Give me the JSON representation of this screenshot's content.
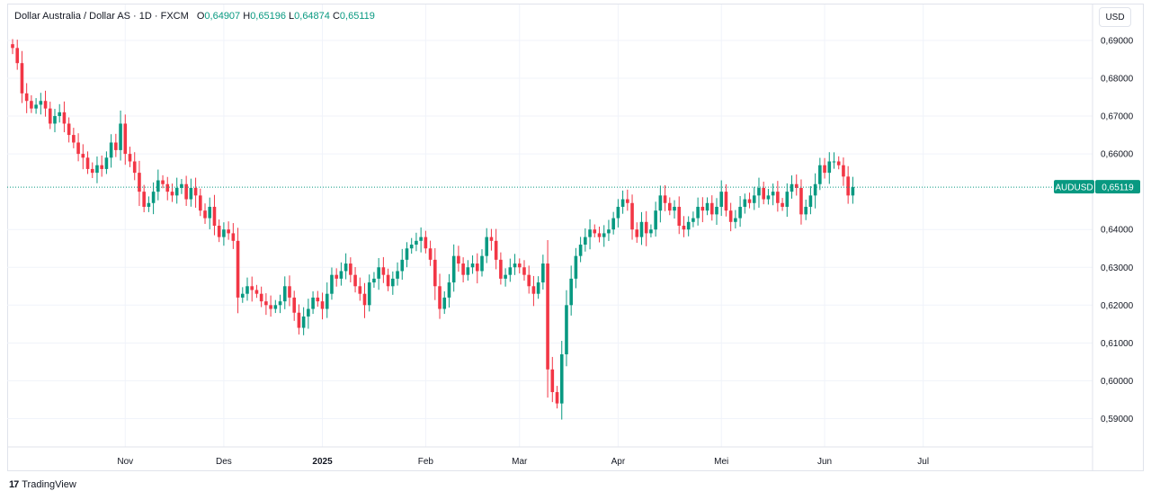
{
  "header": {
    "symbol_title": "Dollar Australia / Dollar AS · 1D · FXCM",
    "open_key": "O",
    "open_val": "0,64907",
    "high_key": "H",
    "high_val": "0,65196",
    "low_key": "L",
    "low_val": "0,64874",
    "close_key": "C",
    "close_val": "0,65119"
  },
  "currency_button": "USD",
  "footer": {
    "logo_glyph": "17",
    "brand": "TradingView"
  },
  "colors": {
    "up": "#089981",
    "down": "#f23645",
    "grid": "#f0f3fa",
    "price_line": "#089981"
  },
  "chart_data": {
    "type": "candlestick",
    "instrument": "AUDUSD",
    "last_price_label": "AUDUSD",
    "last_price": 0.65119,
    "last_price_text": "0,65119",
    "ylim": [
      0.5825,
      0.6995
    ],
    "y_ticks": [
      0.69,
      0.68,
      0.67,
      0.66,
      0.64,
      0.63,
      0.62,
      0.61,
      0.6,
      0.59
    ],
    "y_tick_labels": [
      "0,69000",
      "0,68000",
      "0,67000",
      "0,66000",
      "0,64000",
      "0,63000",
      "0,62000",
      "0,61000",
      "0,60000",
      "0,59000"
    ],
    "x_labels": [
      {
        "label": "Nov",
        "index": 24,
        "bold": false
      },
      {
        "label": "Des",
        "index": 45,
        "bold": false
      },
      {
        "label": "2025",
        "index": 66,
        "bold": true
      },
      {
        "label": "Feb",
        "index": 88,
        "bold": false
      },
      {
        "label": "Mar",
        "index": 108,
        "bold": false
      },
      {
        "label": "Apr",
        "index": 129,
        "bold": false
      },
      {
        "label": "Mei",
        "index": 151,
        "bold": false
      },
      {
        "label": "Jun",
        "index": 173,
        "bold": false
      },
      {
        "label": "Jul",
        "index": 194,
        "bold": false
      }
    ],
    "closes": [
      0.688,
      0.684,
      0.676,
      0.674,
      0.672,
      0.673,
      0.674,
      0.672,
      0.668,
      0.67,
      0.671,
      0.668,
      0.665,
      0.663,
      0.66,
      0.659,
      0.656,
      0.655,
      0.657,
      0.656,
      0.659,
      0.663,
      0.661,
      0.668,
      0.66,
      0.658,
      0.655,
      0.65,
      0.646,
      0.647,
      0.65,
      0.653,
      0.652,
      0.65,
      0.649,
      0.651,
      0.652,
      0.648,
      0.651,
      0.649,
      0.645,
      0.643,
      0.646,
      0.641,
      0.638,
      0.64,
      0.639,
      0.637,
      0.622,
      0.623,
      0.625,
      0.624,
      0.623,
      0.621,
      0.62,
      0.619,
      0.62,
      0.621,
      0.625,
      0.622,
      0.618,
      0.614,
      0.617,
      0.619,
      0.622,
      0.621,
      0.619,
      0.623,
      0.628,
      0.627,
      0.629,
      0.631,
      0.628,
      0.625,
      0.623,
      0.62,
      0.626,
      0.627,
      0.63,
      0.628,
      0.625,
      0.627,
      0.629,
      0.632,
      0.635,
      0.636,
      0.637,
      0.638,
      0.635,
      0.632,
      0.625,
      0.619,
      0.622,
      0.626,
      0.633,
      0.631,
      0.628,
      0.63,
      0.631,
      0.629,
      0.633,
      0.638,
      0.637,
      0.632,
      0.627,
      0.628,
      0.63,
      0.631,
      0.63,
      0.628,
      0.625,
      0.623,
      0.626,
      0.631,
      0.603,
      0.597,
      0.594,
      0.607,
      0.62,
      0.627,
      0.633,
      0.636,
      0.638,
      0.64,
      0.639,
      0.638,
      0.639,
      0.64,
      0.643,
      0.646,
      0.648,
      0.647,
      0.64,
      0.638,
      0.642,
      0.639,
      0.64,
      0.645,
      0.649,
      0.647,
      0.645,
      0.646,
      0.641,
      0.64,
      0.642,
      0.643,
      0.646,
      0.645,
      0.647,
      0.644,
      0.646,
      0.65,
      0.645,
      0.642,
      0.643,
      0.646,
      0.648,
      0.647,
      0.649,
      0.651,
      0.648,
      0.649,
      0.65,
      0.647,
      0.646,
      0.65,
      0.652,
      0.651,
      0.644,
      0.646,
      0.649,
      0.652,
      0.657,
      0.655,
      0.658,
      0.658,
      0.657,
      0.654,
      0.649,
      0.6512
    ],
    "notes_unused": ""
  }
}
